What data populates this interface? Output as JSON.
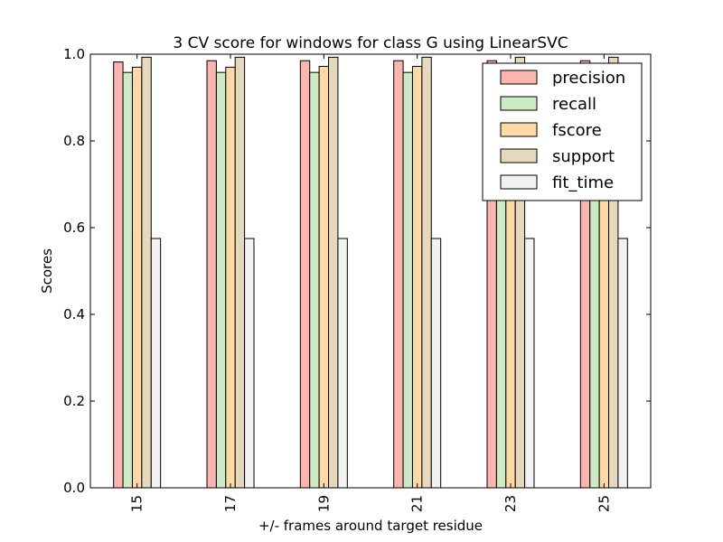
{
  "chart_data": {
    "type": "bar",
    "title": "3 CV score for windows for class G using LinearSVC",
    "xlabel": "+/- frames around target residue",
    "ylabel": "Scores",
    "ylim": [
      0,
      1.0
    ],
    "yticks": [
      "0.0",
      "0.2",
      "0.4",
      "0.6",
      "0.8",
      "1.0"
    ],
    "categories": [
      "15",
      "17",
      "19",
      "21",
      "23",
      "25"
    ],
    "series": [
      {
        "name": "precision",
        "color": "#fbb4ae",
        "values": [
          0.982,
          0.985,
          0.985,
          0.985,
          0.985,
          0.985
        ]
      },
      {
        "name": "recall",
        "color": "#ccebc5",
        "values": [
          0.958,
          0.958,
          0.958,
          0.958,
          0.958,
          0.958
        ]
      },
      {
        "name": "fscore",
        "color": "#fed9a6",
        "values": [
          0.97,
          0.97,
          0.972,
          0.972,
          0.972,
          0.972
        ]
      },
      {
        "name": "support",
        "color": "#e5d8bd",
        "values": [
          0.993,
          0.993,
          0.993,
          0.993,
          0.993,
          0.993
        ]
      },
      {
        "name": "fit_time",
        "color": "#f2f2f2",
        "values": [
          0.575,
          0.575,
          0.575,
          0.575,
          0.575,
          0.575
        ]
      }
    ],
    "grid": false,
    "legend_position": "top-right"
  }
}
